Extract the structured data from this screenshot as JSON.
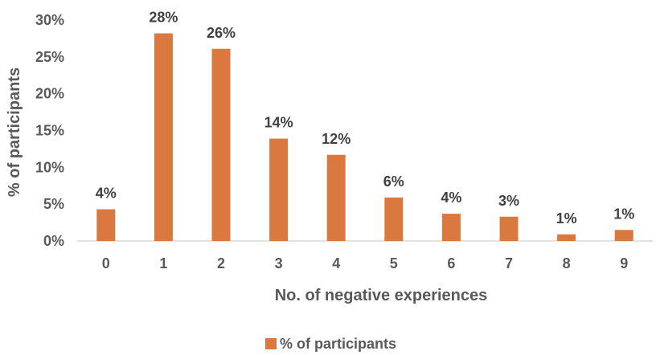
{
  "chart_data": {
    "type": "bar",
    "title": "",
    "xlabel": "No. of negative experiences",
    "ylabel": "% of participants",
    "categories": [
      "0",
      "1",
      "2",
      "3",
      "4",
      "5",
      "6",
      "7",
      "8",
      "9"
    ],
    "series": [
      {
        "name": "% of participants",
        "values": [
          4.3,
          28.2,
          26.1,
          13.9,
          11.7,
          5.9,
          3.7,
          3.3,
          0.9,
          1.5
        ],
        "data_labels": [
          "4%",
          "28%",
          "26%",
          "14%",
          "12%",
          "6%",
          "4%",
          "3%",
          "1%",
          "1%"
        ],
        "color": "#D9783F"
      }
    ],
    "ylim": [
      0,
      30
    ],
    "yticks": [
      0,
      5,
      10,
      15,
      20,
      25,
      30
    ],
    "ytick_labels": [
      "0%",
      "5%",
      "10%",
      "15%",
      "20%",
      "25%",
      "30%"
    ],
    "grid": false,
    "legend_position": "bottom"
  }
}
